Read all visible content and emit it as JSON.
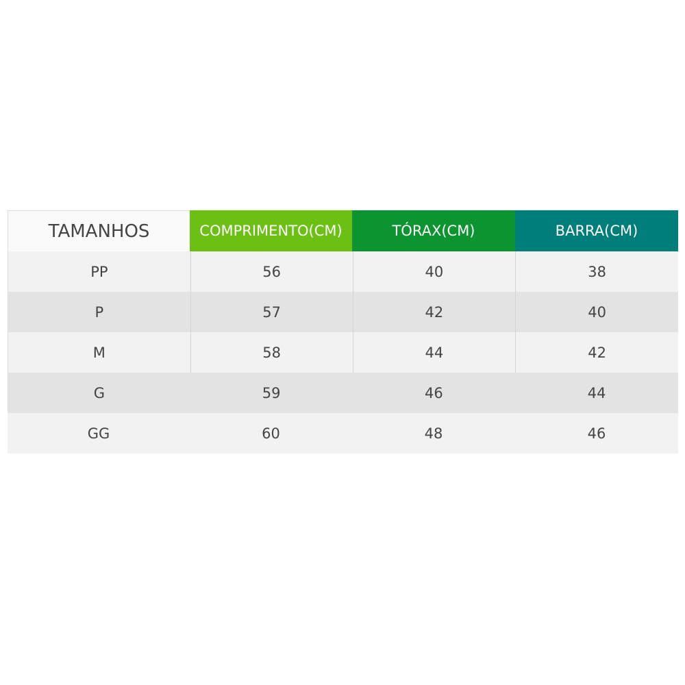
{
  "colors": {
    "comprimento": "#6cc014",
    "torax": "#0b9430",
    "barra": "#007e79",
    "row_light": "#f2f2f2",
    "row_dark": "#e3e3e3"
  },
  "headers": [
    "TAMANHOS",
    "COMPRIMENTO(CM)",
    "TÓRAX(CM)",
    "BARRA(CM)"
  ],
  "rows": [
    [
      "PP",
      "56",
      "40",
      "38"
    ],
    [
      "P",
      "57",
      "42",
      "40"
    ],
    [
      "M",
      "58",
      "44",
      "42"
    ],
    [
      "G",
      "59",
      "46",
      "44"
    ],
    [
      "GG",
      "60",
      "48",
      "46"
    ]
  ]
}
